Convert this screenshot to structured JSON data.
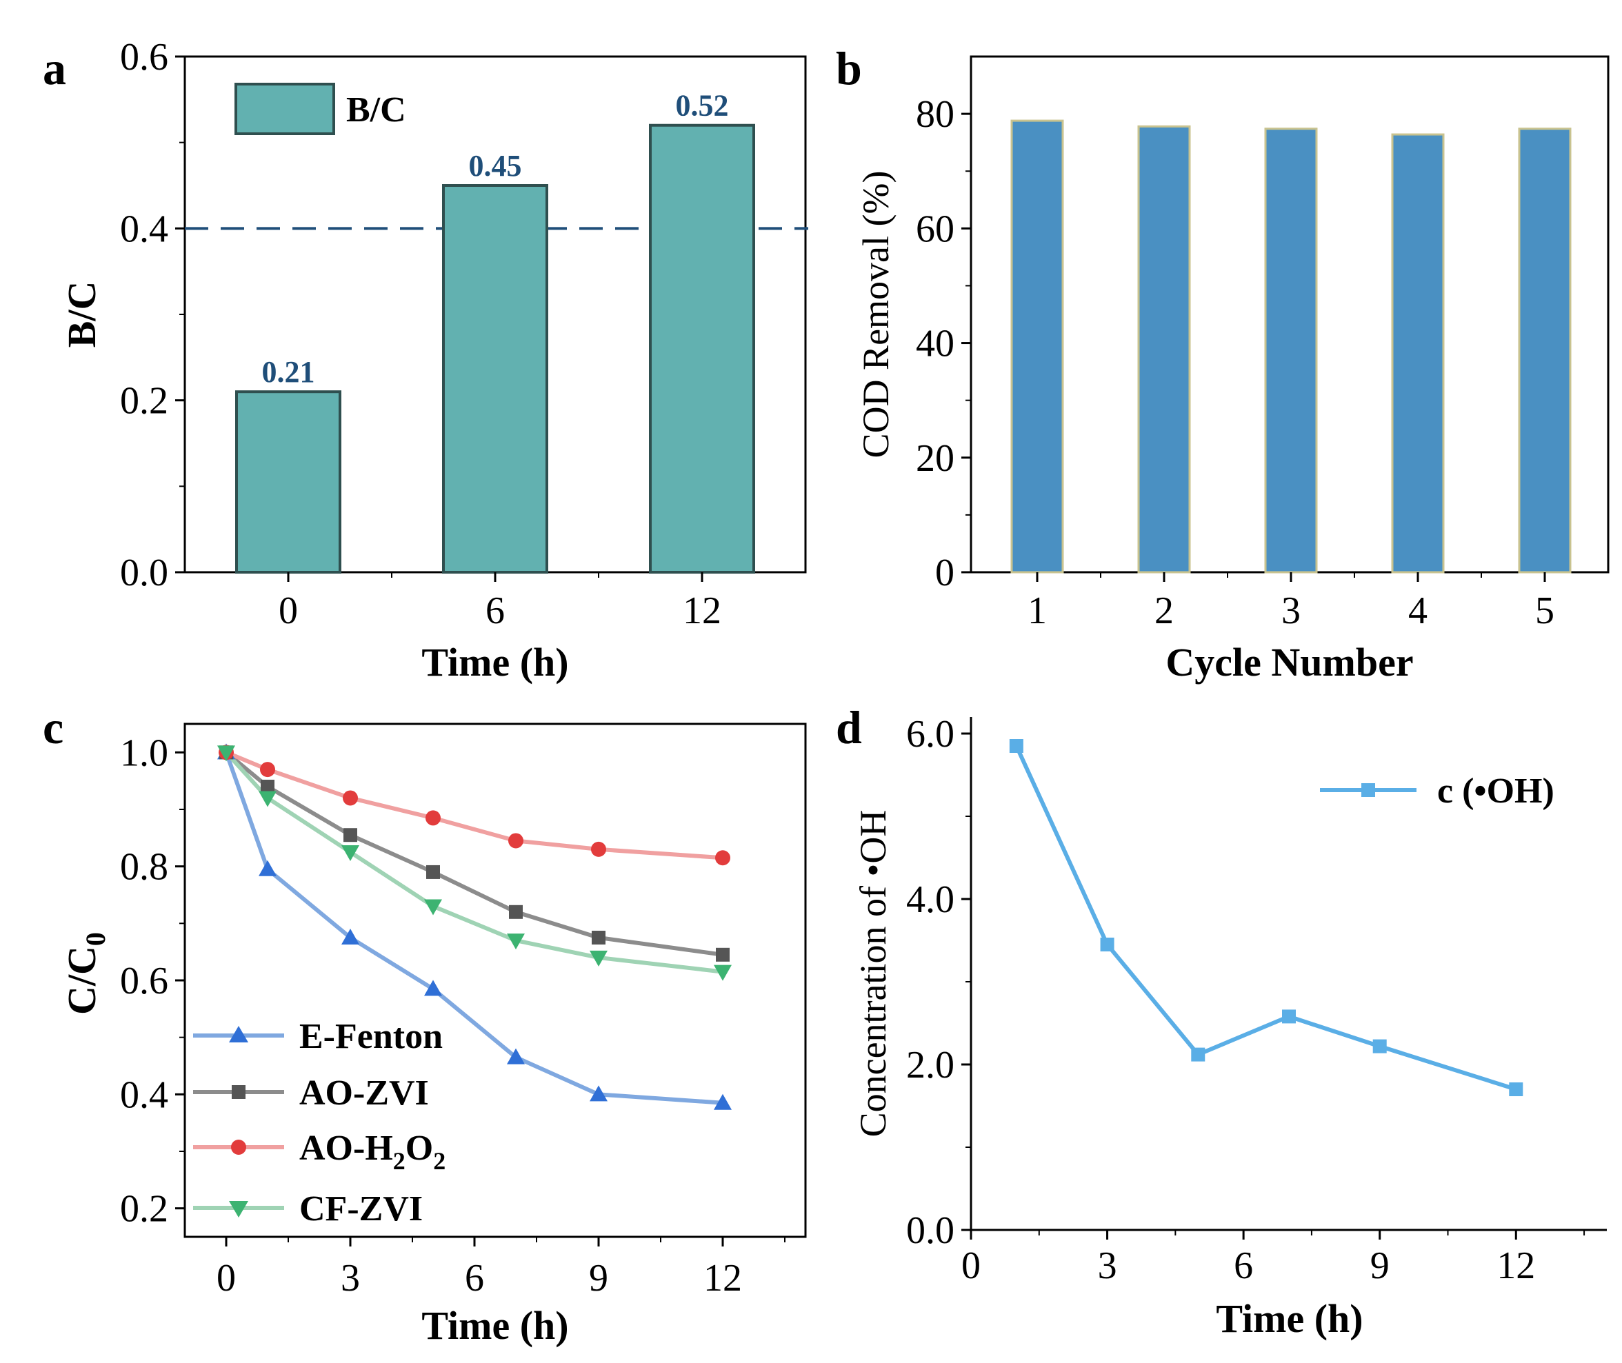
{
  "colors": {
    "teal_bar": "#62b1b0",
    "teal_edge": "#2f4f4f",
    "blue_bar": "#4a90c2",
    "blue_edge": "#c9c38f",
    "dash": "#1f4e79",
    "e_fenton": "#7fa8e0",
    "e_fenton_marker": "#2f6fd6",
    "ao_zvi": "#8c8c8c",
    "ao_zvi_marker": "#555555",
    "ao_h2o2": "#f0a0a0",
    "ao_h2o2_marker": "#e23c3c",
    "cf_zvi": "#9fd3b4",
    "cf_zvi_marker": "#3cb371",
    "oh_line": "#5aaee6",
    "oh_marker": "#5aaee6"
  },
  "chart_data": [
    {
      "panel": "a",
      "type": "bar",
      "categories": [
        "0",
        "6",
        "12"
      ],
      "values": [
        0.21,
        0.45,
        0.52
      ],
      "value_labels": [
        "0.21",
        "0.45",
        "0.52"
      ],
      "xlabel": "Time (h)",
      "ylabel": "B/C",
      "ylim": [
        0,
        0.6
      ],
      "yticks": [
        "0.0",
        "0.2",
        "0.4",
        "0.6"
      ],
      "legend": [
        "B/C"
      ],
      "reference_line": 0.4
    },
    {
      "panel": "b",
      "type": "bar",
      "categories": [
        "1",
        "2",
        "3",
        "4",
        "5"
      ],
      "values": [
        78.8,
        77.8,
        77.4,
        76.4,
        77.4
      ],
      "xlabel": "Cycle Number",
      "ylabel": "COD Removal (%)",
      "ylim": [
        0,
        90
      ],
      "yticks": [
        "0",
        "20",
        "40",
        "60",
        "80"
      ]
    },
    {
      "panel": "c",
      "type": "line",
      "x": [
        0,
        1,
        3,
        5,
        7,
        9,
        12
      ],
      "xlim": [
        -1,
        14
      ],
      "ylim": [
        0.15,
        1.05
      ],
      "xticks": [
        "0",
        "3",
        "6",
        "9",
        "12"
      ],
      "yticks": [
        "0.2",
        "0.4",
        "0.6",
        "0.8",
        "1.0"
      ],
      "xlabel": "Time (h)",
      "ylabel": "C/C",
      "ylabel_sub": "0",
      "series": [
        {
          "name": "E-Fenton",
          "values": [
            1.0,
            0.795,
            0.675,
            0.585,
            0.465,
            0.4,
            0.385
          ]
        },
        {
          "name": "AO-ZVI",
          "values": [
            1.0,
            0.94,
            0.855,
            0.79,
            0.72,
            0.675,
            0.645
          ]
        },
        {
          "name": "AO-H2O2",
          "values": [
            1.0,
            0.97,
            0.92,
            0.885,
            0.845,
            0.83,
            0.815
          ]
        },
        {
          "name": "CF-ZVI",
          "values": [
            1.0,
            0.92,
            0.825,
            0.73,
            0.67,
            0.64,
            0.615
          ]
        }
      ],
      "legend": {
        "e_fenton": "E-Fenton",
        "ao_zvi": "AO-ZVI",
        "ao_h2o2_base": "AO-H",
        "ao_h2o2_sub1": "2",
        "ao_h2o2_mid": "O",
        "ao_h2o2_sub2": "2",
        "cf_zvi": "CF-ZVI"
      }
    },
    {
      "panel": "d",
      "type": "line",
      "x": [
        1,
        3,
        5,
        7,
        9,
        12
      ],
      "xlim": [
        0,
        14
      ],
      "ylim": [
        0,
        6.2
      ],
      "xticks": [
        "0",
        "3",
        "6",
        "9",
        "12"
      ],
      "yticks": [
        "0.0",
        "2.0",
        "4.0",
        "6.0"
      ],
      "xlabel": "Time (h)",
      "ylabel": "Concentration of •OH",
      "series": [
        {
          "name": "c (•OH)",
          "values": [
            5.85,
            3.45,
            2.12,
            2.58,
            2.22,
            1.7
          ]
        }
      ]
    }
  ],
  "panels": {
    "a": "a",
    "b": "b",
    "c": "c",
    "d": "d"
  }
}
